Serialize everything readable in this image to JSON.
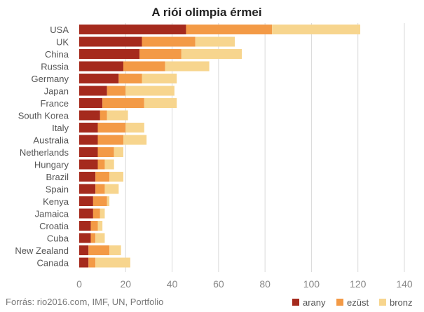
{
  "chart_data": {
    "type": "bar",
    "orientation": "horizontal",
    "stacked": true,
    "title": "A riói olimpia érmei",
    "categories": [
      "USA",
      "UK",
      "China",
      "Russia",
      "Germany",
      "Japan",
      "France",
      "South Korea",
      "Italy",
      "Australia",
      "Netherlands",
      "Hungary",
      "Brazil",
      "Spain",
      "Kenya",
      "Jamaica",
      "Croatia",
      "Cuba",
      "New Zealand",
      "Canada"
    ],
    "series": [
      {
        "name": "arany",
        "color": "#a52a1d",
        "values": [
          46,
          27,
          26,
          19,
          17,
          12,
          10,
          9,
          8,
          8,
          8,
          8,
          7,
          7,
          6,
          6,
          5,
          5,
          4,
          4
        ]
      },
      {
        "name": "ezüst",
        "color": "#f39a46",
        "values": [
          37,
          23,
          18,
          18,
          10,
          8,
          18,
          3,
          12,
          11,
          7,
          3,
          6,
          4,
          6,
          3,
          3,
          2,
          9,
          3
        ]
      },
      {
        "name": "bronz",
        "color": "#f7d58e",
        "values": [
          38,
          17,
          26,
          19,
          15,
          21,
          14,
          9,
          8,
          10,
          4,
          4,
          6,
          6,
          1,
          2,
          2,
          4,
          5,
          15
        ]
      }
    ],
    "xlim": [
      0,
      140
    ],
    "xticks": [
      0,
      20,
      40,
      60,
      80,
      100,
      120,
      140
    ],
    "grid": true,
    "legend_position": "bottom-right",
    "source": "Forrás: rio2016.com, IMF, UN, Portfolio"
  }
}
